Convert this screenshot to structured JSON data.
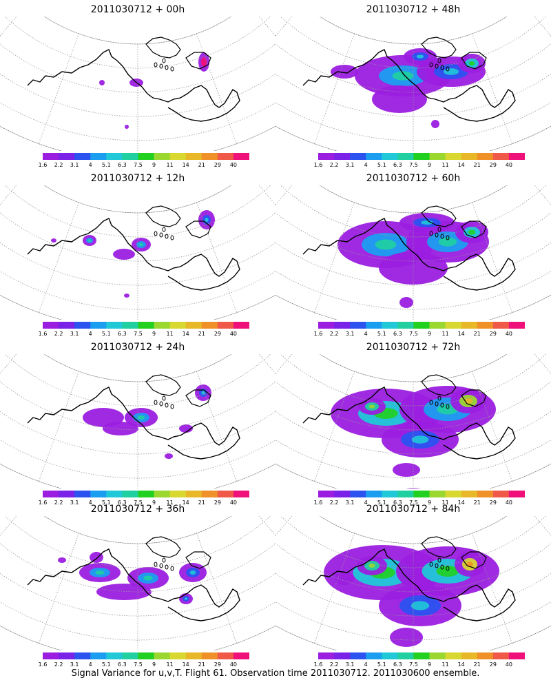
{
  "panels": [
    {
      "title": "2011030712 + 00h"
    },
    {
      "title": "2011030712 + 48h"
    },
    {
      "title": "2011030712 + 12h"
    },
    {
      "title": "2011030712 + 60h"
    },
    {
      "title": "2011030712 + 24h"
    },
    {
      "title": "2011030712 + 72h"
    },
    {
      "title": "2011030712 + 36h"
    },
    {
      "title": "2011030712 + 84h"
    }
  ],
  "colorbar": {
    "labels": [
      "1.6",
      "2.2",
      "3.1",
      "4",
      "5.1",
      "6.3",
      "7.5",
      "9",
      "11",
      "14",
      "21",
      "29",
      "40"
    ],
    "colors": [
      "#9b1ee0",
      "#7a22e8",
      "#2c52f0",
      "#1c9ef0",
      "#20c8d8",
      "#20d0a0",
      "#22d020",
      "#9ad830",
      "#d8d830",
      "#e8b828",
      "#f09028",
      "#f05848",
      "#f0107a"
    ]
  },
  "caption": "Signal Variance for u,v,T. Flight 61. Observation time 2011030712. 2011030600 ensemble."
}
